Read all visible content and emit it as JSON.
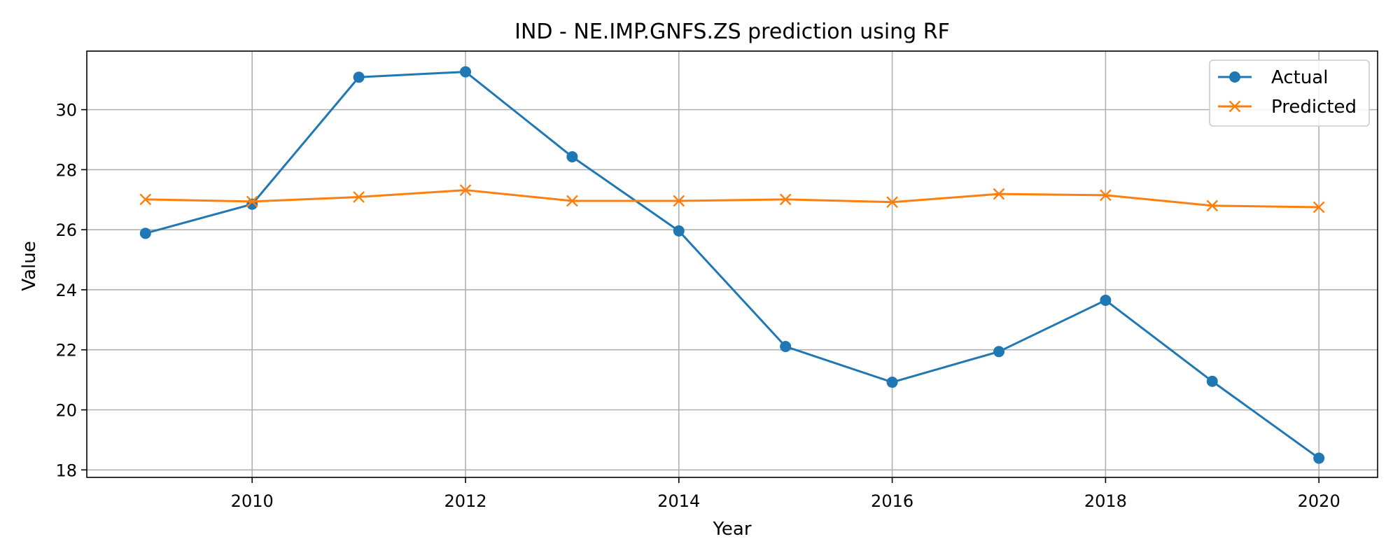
{
  "chart_data": {
    "type": "line",
    "title": "IND - NE.IMP.GNFS.ZS prediction using RF",
    "xlabel": "Year",
    "ylabel": "Value",
    "x": [
      2009,
      2010,
      2011,
      2012,
      2013,
      2014,
      2015,
      2016,
      2017,
      2018,
      2019,
      2020
    ],
    "xlim": [
      2008.45,
      2020.55
    ],
    "ylim": [
      17.75,
      31.95
    ],
    "xticks": [
      2010,
      2012,
      2014,
      2016,
      2018,
      2020
    ],
    "yticks": [
      18,
      20,
      22,
      24,
      26,
      28,
      30
    ],
    "grid": true,
    "legend_position": "top-right",
    "series": [
      {
        "name": "Actual",
        "color": "#1f77b4",
        "marker": "circle",
        "values": [
          25.88,
          26.85,
          31.08,
          31.26,
          28.43,
          25.96,
          22.11,
          20.92,
          21.94,
          23.65,
          20.95,
          18.39
        ]
      },
      {
        "name": "Predicted",
        "color": "#ff7f0e",
        "marker": "x",
        "values": [
          27.01,
          26.94,
          27.09,
          27.32,
          26.96,
          26.96,
          27.01,
          26.92,
          27.19,
          27.15,
          26.8,
          26.75
        ]
      }
    ]
  }
}
